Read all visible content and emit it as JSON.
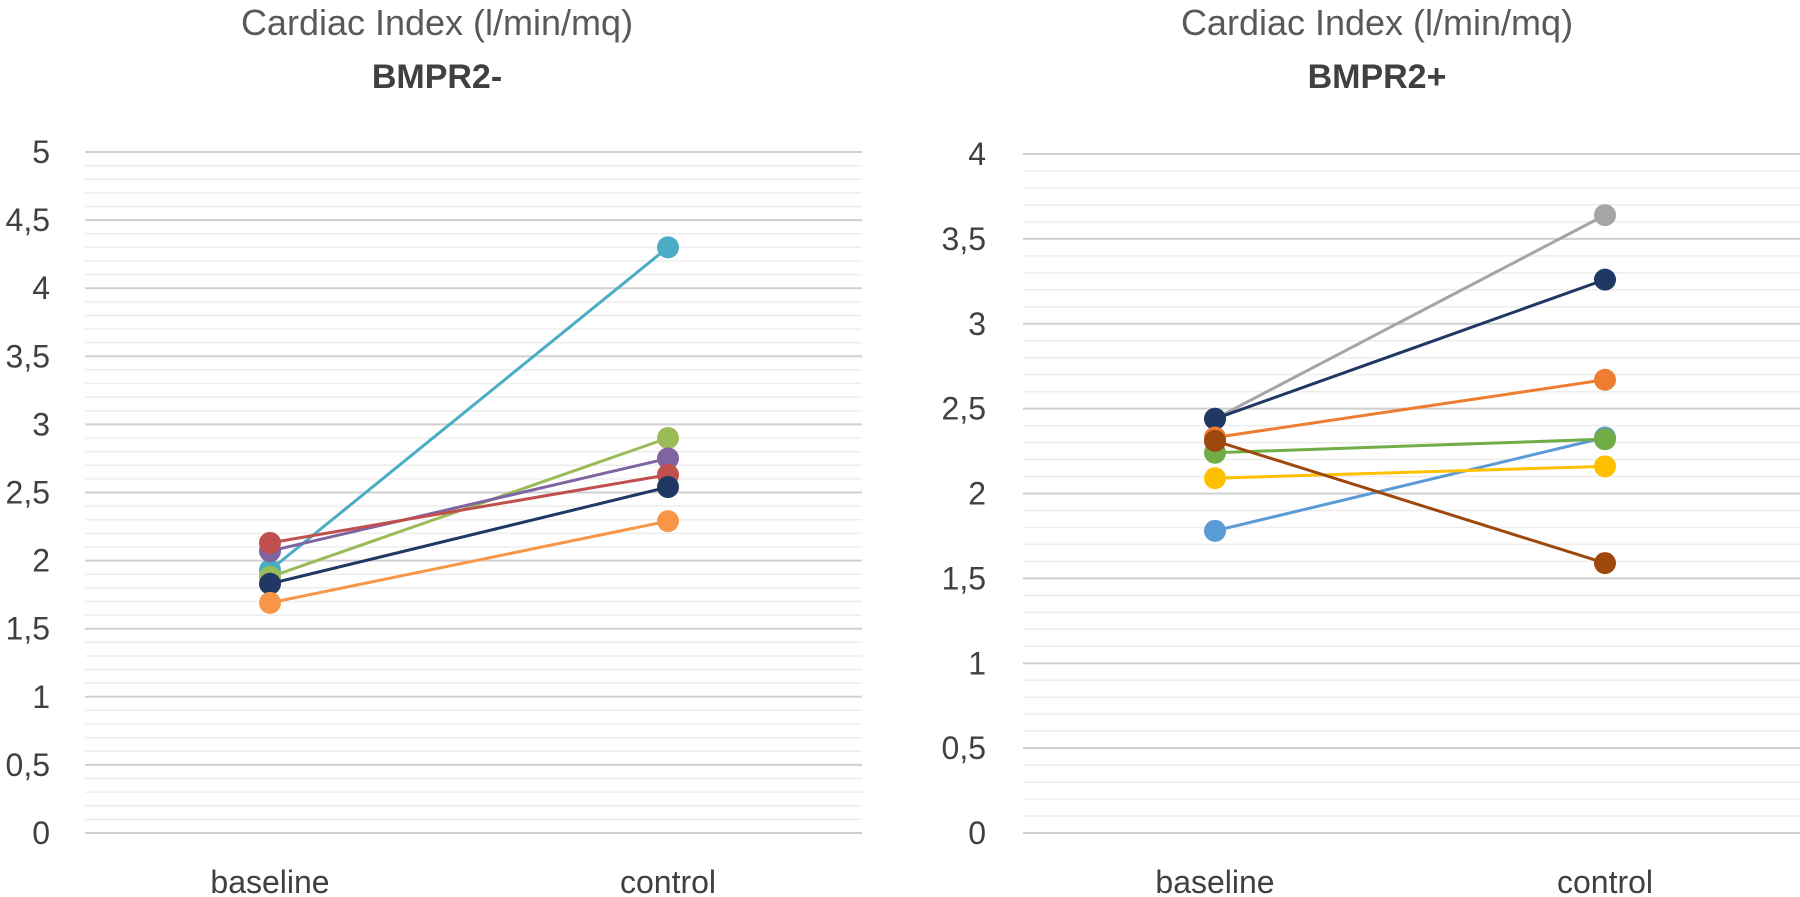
{
  "chart_data": [
    {
      "type": "line",
      "title": "Cardiac Index (l/min/mq)",
      "subtitle": "BMPR2-",
      "categories": [
        "baseline",
        "control"
      ],
      "ylim": [
        0,
        5
      ],
      "yticks": [
        "0",
        "0,5",
        "1",
        "1,5",
        "2",
        "2,5",
        "3",
        "3,5",
        "4",
        "4,5",
        "5"
      ],
      "grid": true,
      "series": [
        {
          "color": "#4BACC6",
          "values": [
            1.93,
            4.3
          ]
        },
        {
          "color": "#9BBB59",
          "values": [
            1.88,
            2.9
          ]
        },
        {
          "color": "#8064A2",
          "values": [
            2.07,
            2.75
          ]
        },
        {
          "color": "#C0504D",
          "values": [
            2.13,
            2.63
          ]
        },
        {
          "color": "#1F3864",
          "values": [
            1.83,
            2.54
          ]
        },
        {
          "color": "#F79646",
          "values": [
            1.69,
            2.29
          ]
        }
      ]
    },
    {
      "type": "line",
      "title": "Cardiac Index (l/min/mq)",
      "subtitle": "BMPR2+",
      "categories": [
        "baseline",
        "control"
      ],
      "ylim": [
        0,
        4
      ],
      "yticks": [
        "0",
        "0,5",
        "1",
        "1,5",
        "2",
        "2,5",
        "3",
        "3,5",
        "4"
      ],
      "grid": true,
      "series": [
        {
          "color": "#A5A5A5",
          "values": [
            2.44,
            3.64
          ]
        },
        {
          "color": "#1F3864",
          "values": [
            2.44,
            3.26
          ]
        },
        {
          "color": "#ED7D31",
          "values": [
            2.33,
            2.67
          ]
        },
        {
          "color": "#5B9BD5",
          "values": [
            1.78,
            2.33
          ]
        },
        {
          "color": "#70AD47",
          "values": [
            2.24,
            2.32
          ]
        },
        {
          "color": "#FFC000",
          "values": [
            2.09,
            2.16
          ]
        },
        {
          "color": "#9E480E",
          "values": [
            2.31,
            1.59
          ]
        }
      ]
    }
  ]
}
